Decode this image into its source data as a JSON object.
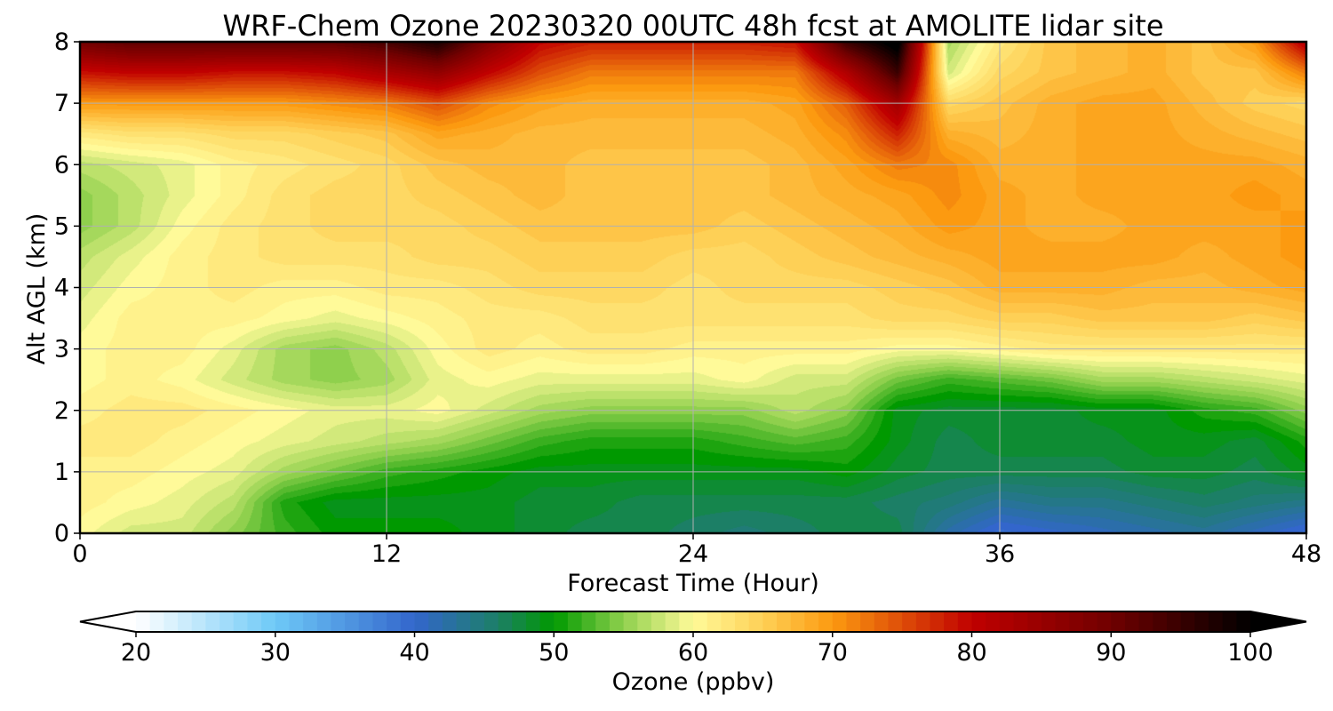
{
  "chart_data": {
    "type": "heatmap",
    "title": "WRF-Chem Ozone  20230320 00UTC 48h fcst at AMOLITE lidar site",
    "xlabel": "Forecast Time (Hour)",
    "ylabel": "Alt AGL (km)",
    "xlim": [
      0,
      48
    ],
    "ylim": [
      0,
      8
    ],
    "xticks": [
      0,
      12,
      24,
      36,
      48
    ],
    "yticks": [
      0,
      1,
      2,
      3,
      4,
      5,
      6,
      7,
      8
    ],
    "grid": true,
    "x": [
      0,
      2,
      4,
      6,
      8,
      10,
      12,
      14,
      16,
      18,
      20,
      22,
      24,
      26,
      28,
      30,
      32,
      34,
      36,
      38,
      40,
      42,
      44,
      46,
      48
    ],
    "y": [
      0,
      0.5,
      1,
      1.5,
      2,
      2.5,
      3,
      3.5,
      4,
      4.5,
      5,
      5.5,
      6,
      6.5,
      7,
      7.5,
      8
    ],
    "z": [
      [
        60,
        58,
        58,
        55,
        52,
        50,
        50,
        50,
        49,
        48,
        47,
        47,
        46,
        45,
        46,
        47,
        47,
        42,
        39,
        40,
        41,
        42,
        43,
        41,
        39
      ],
      [
        61,
        60,
        59,
        57,
        51,
        49,
        49,
        49,
        49,
        48,
        48,
        47,
        47,
        47,
        47,
        47,
        46,
        45,
        43,
        44,
        44,
        45,
        46,
        45,
        44
      ],
      [
        61,
        61,
        60,
        59,
        56,
        54,
        52,
        51,
        50,
        49,
        49,
        49,
        49,
        49,
        49,
        50,
        48,
        47,
        47,
        47,
        47,
        48,
        48,
        47,
        49
      ],
      [
        62,
        62,
        61,
        60,
        59,
        58,
        57,
        56,
        54,
        52,
        51,
        51,
        51,
        52,
        53,
        52,
        49,
        47,
        48,
        48,
        48,
        49,
        49,
        48,
        51
      ],
      [
        61,
        62,
        62,
        61,
        60,
        59,
        59,
        60,
        58,
        56,
        55,
        55,
        55,
        55,
        57,
        55,
        49,
        48,
        48,
        48,
        49,
        49,
        51,
        52,
        55
      ],
      [
        60,
        61,
        60,
        58,
        56,
        55,
        56,
        59,
        60,
        59,
        59,
        59,
        59,
        60,
        58,
        58,
        54,
        52,
        53,
        54,
        56,
        56,
        57,
        58,
        59
      ],
      [
        60,
        61,
        61,
        59,
        56,
        55,
        57,
        60,
        62,
        61,
        62,
        62,
        61,
        61,
        61,
        61,
        60,
        60,
        61,
        62,
        62,
        62,
        62,
        62,
        62
      ],
      [
        59,
        61,
        61,
        61,
        60,
        59,
        60,
        61,
        62,
        62,
        63,
        63,
        63,
        63,
        63,
        63,
        64,
        64,
        65,
        65,
        66,
        66,
        66,
        65,
        66
      ],
      [
        58,
        60,
        61,
        62,
        61,
        61,
        62,
        62,
        63,
        64,
        64,
        64,
        63,
        64,
        64,
        64,
        65,
        66,
        68,
        68,
        68,
        67,
        67,
        68,
        69
      ],
      [
        57,
        59,
        61,
        62,
        63,
        63,
        63,
        64,
        64,
        65,
        65,
        65,
        64,
        64,
        65,
        66,
        67,
        68,
        69,
        69,
        69,
        69,
        68,
        69,
        70
      ],
      [
        55,
        57,
        60,
        62,
        63,
        64,
        64,
        64,
        65,
        66,
        66,
        66,
        66,
        65,
        66,
        67,
        68,
        70,
        69,
        68,
        68,
        69,
        69,
        69,
        70
      ],
      [
        55,
        57,
        59,
        61,
        63,
        64,
        64,
        65,
        66,
        67,
        66,
        66,
        66,
        66,
        67,
        68,
        69,
        71,
        69,
        68,
        69,
        69,
        69,
        70,
        69
      ],
      [
        57,
        58,
        59,
        61,
        62,
        63,
        64,
        66,
        67,
        67,
        66,
        66,
        66,
        66,
        67,
        69,
        72,
        71,
        68,
        68,
        69,
        69,
        69,
        69,
        68
      ],
      [
        62,
        63,
        63,
        64,
        64,
        65,
        66,
        69,
        68,
        67,
        67,
        67,
        67,
        67,
        68,
        71,
        78,
        68,
        67,
        68,
        69,
        69,
        68,
        67,
        66
      ],
      [
        70,
        70,
        70,
        70,
        70,
        71,
        72,
        75,
        71,
        69,
        68,
        68,
        68,
        68,
        69,
        74,
        84,
        64,
        66,
        68,
        69,
        69,
        67,
        65,
        64
      ],
      [
        79,
        80,
        80,
        79,
        79,
        80,
        83,
        86,
        80,
        75,
        72,
        72,
        72,
        72,
        72,
        82,
        95,
        58,
        64,
        66,
        67,
        68,
        66,
        66,
        72
      ],
      [
        90,
        92,
        92,
        92,
        92,
        92,
        94,
        98,
        88,
        80,
        78,
        78,
        78,
        78,
        79,
        95,
        102,
        56,
        62,
        66,
        67,
        68,
        66,
        70,
        82
      ]
    ],
    "colorbar": {
      "label": "Ozone  (ppbv)",
      "min": 20,
      "max": 100,
      "ticks": [
        20,
        30,
        40,
        50,
        60,
        70,
        80,
        90,
        100
      ],
      "extend": "both",
      "colors": [
        {
          "v": 20,
          "c": "#ffffff"
        },
        {
          "v": 30,
          "c": "#6ec9f7"
        },
        {
          "v": 40,
          "c": "#3366cc"
        },
        {
          "v": 46,
          "c": "#1c7f66"
        },
        {
          "v": 50,
          "c": "#009900"
        },
        {
          "v": 55,
          "c": "#8fd04d"
        },
        {
          "v": 60,
          "c": "#fffa99"
        },
        {
          "v": 65,
          "c": "#fed056"
        },
        {
          "v": 70,
          "c": "#fc9a10"
        },
        {
          "v": 80,
          "c": "#c00000"
        },
        {
          "v": 90,
          "c": "#700000"
        },
        {
          "v": 100,
          "c": "#000000"
        }
      ]
    }
  }
}
